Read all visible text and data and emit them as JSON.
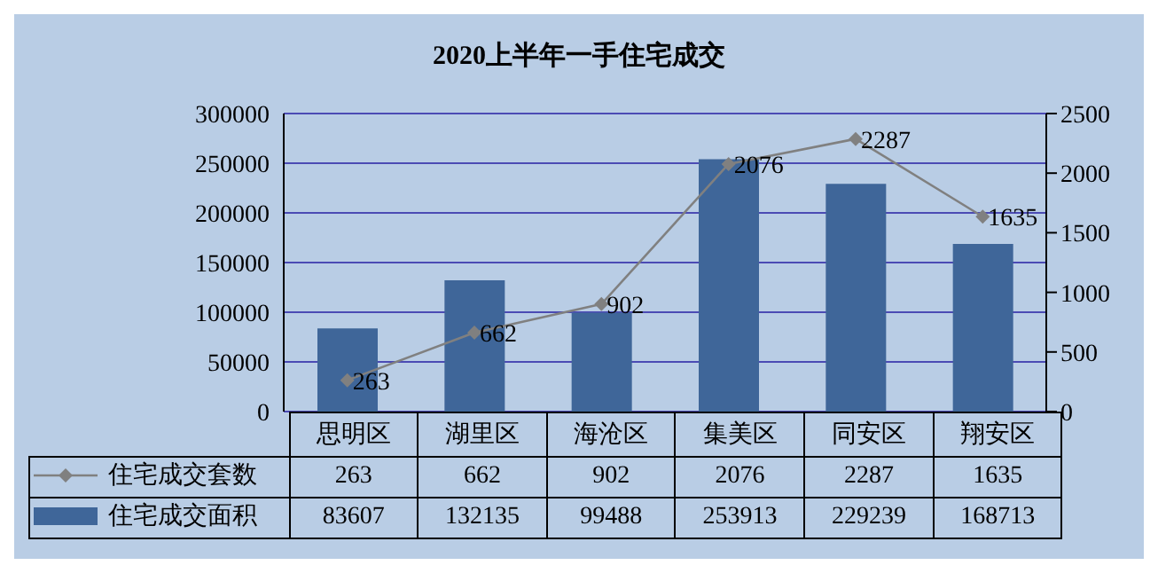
{
  "chart_data": {
    "type": "bar",
    "title": "2020上半年一手住宅成交",
    "categories": [
      "思明区",
      "湖里区",
      "海沧区",
      "集美区",
      "同安区",
      "翔安区"
    ],
    "series": [
      {
        "name": "住宅成交套数",
        "type": "line",
        "axis": "y2",
        "color": "#808080",
        "marker": "diamond",
        "values": [
          263,
          662,
          902,
          2076,
          2287,
          1635
        ],
        "value_labels": [
          "263",
          "662",
          "902",
          "2076",
          "2287",
          "1635"
        ]
      },
      {
        "name": "住宅成交面积",
        "color": "#3f6699",
        "values": [
          83607,
          132135,
          99488,
          253913,
          229239,
          168713
        ],
        "value_labels": [
          "83607",
          "132135",
          "99488",
          "253913",
          "229239",
          "168713"
        ]
      }
    ],
    "ylim": [
      0,
      300000
    ],
    "yticks": [
      0,
      50000,
      100000,
      150000,
      200000,
      250000,
      300000
    ],
    "y2lim": [
      0,
      2500
    ],
    "y2ticks": [
      0,
      500,
      1000,
      1500,
      2000,
      2500
    ],
    "grid": "y",
    "legend": "bottom"
  }
}
